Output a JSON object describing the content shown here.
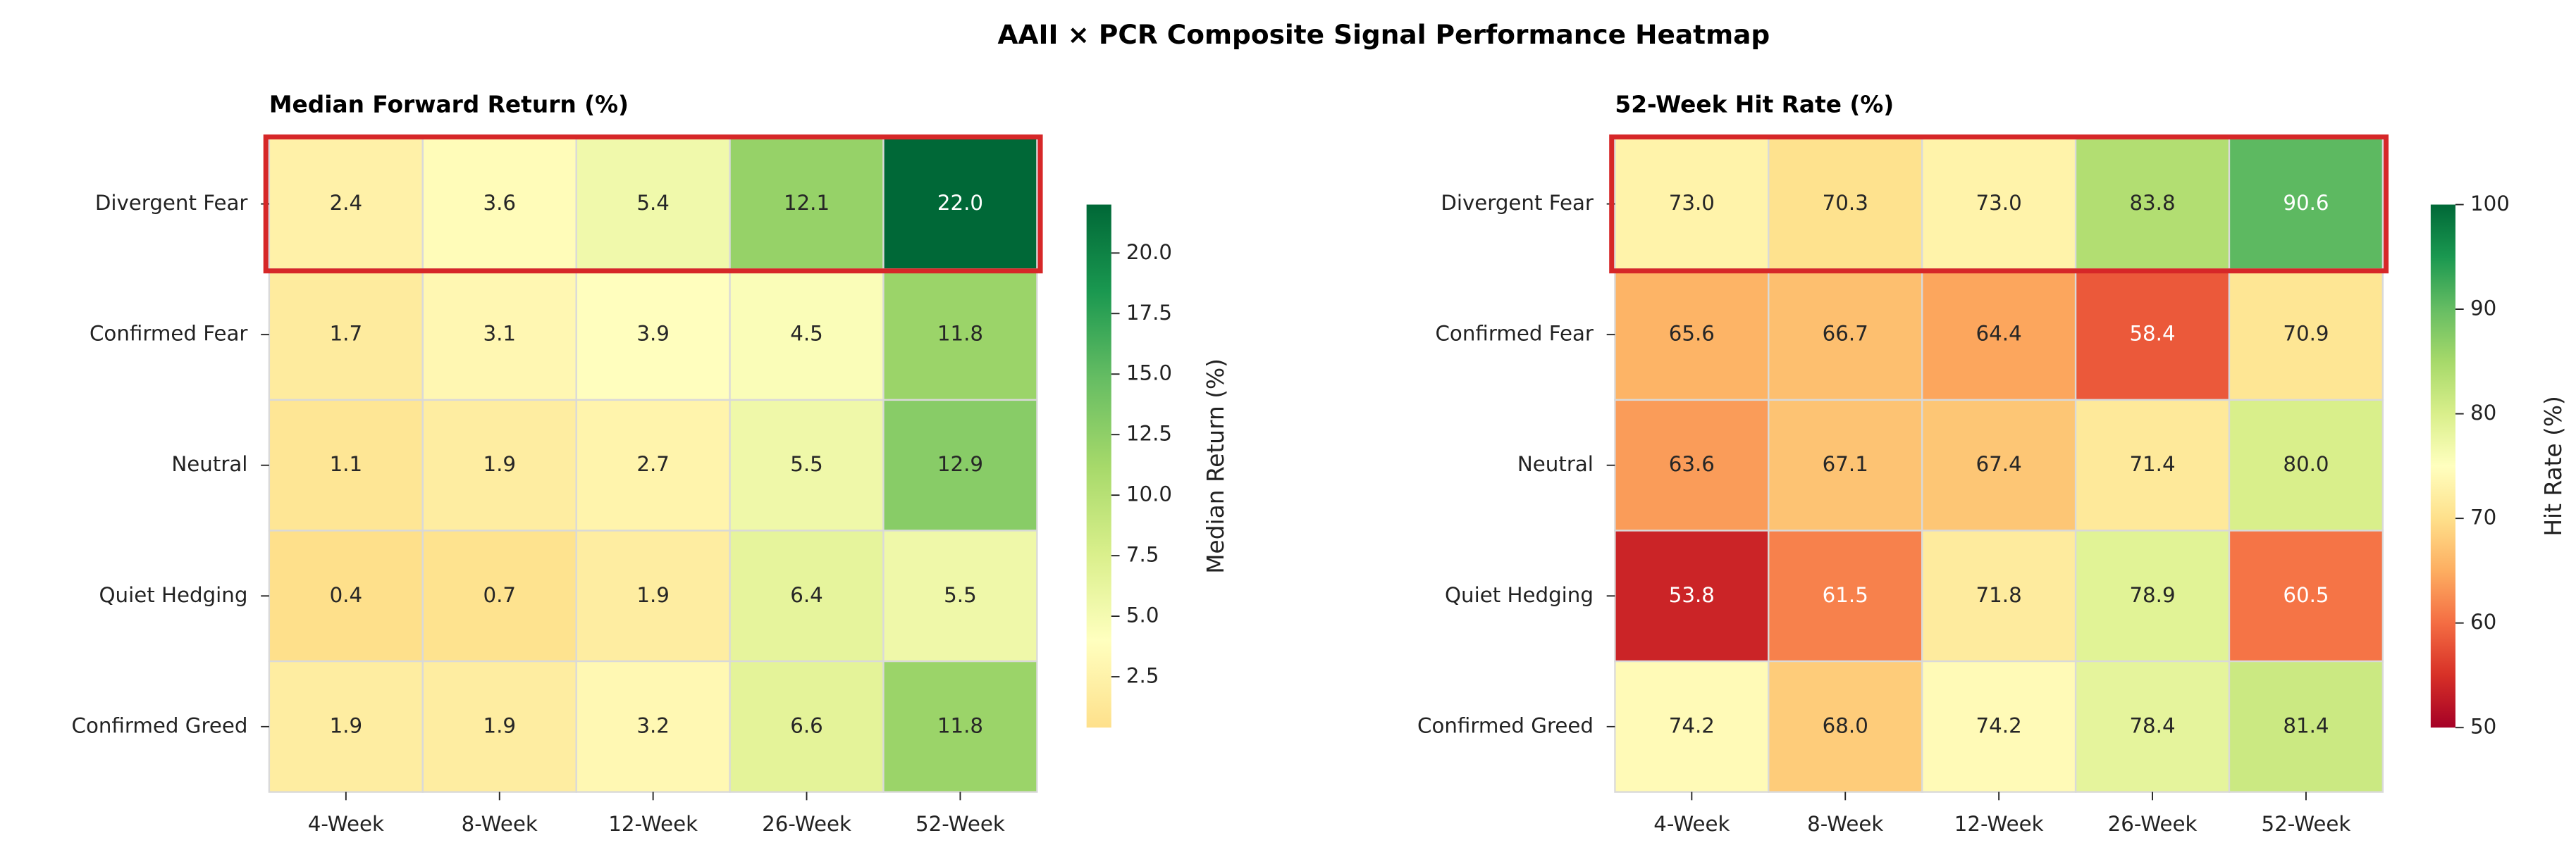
{
  "title": "AAII × PCR Composite Signal Performance Heatmap",
  "chart_data": [
    {
      "type": "heatmap",
      "title": "Median Forward Return (%)",
      "x": [
        "4-Week",
        "8-Week",
        "12-Week",
        "26-Week",
        "52-Week"
      ],
      "y": [
        "Divergent Fear",
        "Confirmed Fear",
        "Neutral",
        "Quiet Hedging",
        "Confirmed Greed"
      ],
      "values": [
        [
          2.4,
          3.6,
          5.4,
          12.1,
          22.0
        ],
        [
          1.7,
          3.1,
          3.9,
          4.5,
          11.8
        ],
        [
          1.1,
          1.9,
          2.7,
          5.5,
          12.9
        ],
        [
          0.4,
          0.7,
          1.9,
          6.4,
          5.5
        ],
        [
          1.9,
          1.9,
          3.2,
          6.6,
          11.8
        ]
      ],
      "value_labels": [
        [
          "2.4",
          "3.6",
          "5.4",
          "12.1",
          "22.0"
        ],
        [
          "1.7",
          "3.1",
          "3.9",
          "4.5",
          "11.8"
        ],
        [
          "1.1",
          "1.9",
          "2.7",
          "5.5",
          "12.9"
        ],
        [
          "0.4",
          "0.7",
          "1.9",
          "6.4",
          "5.5"
        ],
        [
          "1.9",
          "1.9",
          "3.2",
          "6.6",
          "11.8"
        ]
      ],
      "colorbar_label": "Median Return (%)",
      "clim": [
        0.4,
        22.0
      ],
      "cticks": [
        2.5,
        {
          "value": 5,
          "label": "5.0"
        },
        7.5,
        {
          "value": 10,
          "label": "10.0"
        },
        12.5,
        {
          "value": 15,
          "label": "15.0"
        },
        17.5,
        {
          "value": 20,
          "label": "20.0"
        }
      ],
      "colormap": [
        "#fee08b",
        "#ffffbf",
        "#d9ef8b",
        "#a6d96a",
        "#66bd63",
        "#1a9850",
        "#006837"
      ]
    },
    {
      "type": "heatmap",
      "title": "52-Week Hit Rate (%)",
      "x": [
        "4-Week",
        "8-Week",
        "12-Week",
        "26-Week",
        "52-Week"
      ],
      "y": [
        "Divergent Fear",
        "Confirmed Fear",
        "Neutral",
        "Quiet Hedging",
        "Confirmed Greed"
      ],
      "values": [
        [
          73.0,
          70.3,
          73.0,
          83.8,
          90.6
        ],
        [
          65.6,
          66.7,
          64.4,
          58.4,
          70.9
        ],
        [
          63.6,
          67.1,
          67.4,
          71.4,
          80.0
        ],
        [
          53.8,
          61.5,
          71.8,
          78.9,
          60.5
        ],
        [
          74.2,
          68.0,
          74.2,
          78.4,
          81.4
        ]
      ],
      "value_labels": [
        [
          "73.0",
          "70.3",
          "73.0",
          "83.8",
          "90.6"
        ],
        [
          "65.6",
          "66.7",
          "64.4",
          "58.4",
          "70.9"
        ],
        [
          "63.6",
          "67.1",
          "67.4",
          "71.4",
          "80.0"
        ],
        [
          "53.8",
          "61.5",
          "71.8",
          "78.9",
          "60.5"
        ],
        [
          "74.2",
          "68.0",
          "74.2",
          "78.4",
          "81.4"
        ]
      ],
      "colorbar_label": "Hit Rate (%)",
      "clim": [
        50,
        100
      ],
      "cticks": [
        50,
        60,
        70,
        80,
        90,
        100
      ],
      "colormap": [
        "#a50026",
        "#d73027",
        "#f46d43",
        "#fdae61",
        "#fee08b",
        "#ffffbf",
        "#d9ef8b",
        "#a6d96a",
        "#66bd63",
        "#1a9850",
        "#006837"
      ]
    }
  ]
}
